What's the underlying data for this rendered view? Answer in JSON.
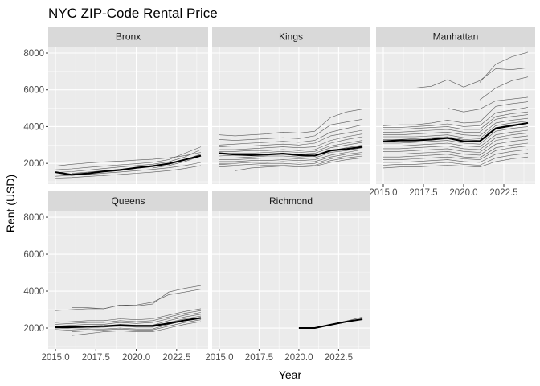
{
  "chart_data": {
    "type": "line",
    "title": "NYC ZIP-Code Rental Price",
    "xlabel": "Year",
    "ylabel": "Rent (USD)",
    "xlim": [
      2014.55,
      2024.45
    ],
    "ylim": [
      870,
      8350
    ],
    "x_ticks": [
      2015.0,
      2017.5,
      2020.0,
      2022.5
    ],
    "x_tick_labels": [
      "2015.0",
      "2017.5",
      "2020.0",
      "2022.5"
    ],
    "y_ticks": [
      2000,
      4000,
      6000,
      8000
    ],
    "y_tick_labels": [
      "2000",
      "4000",
      "6000",
      "8000"
    ],
    "grid": true,
    "colors": {
      "zip_line": "#5a5a5a",
      "median_line": "#000000",
      "panel_bg": "#ebebeb",
      "strip_bg": "#d9d9d9",
      "grid": "#ffffff"
    },
    "x": [
      2015,
      2016,
      2017,
      2018,
      2019,
      2020,
      2021,
      2022,
      2023,
      2024
    ],
    "panels": [
      {
        "name": "Bronx",
        "series": [
          {
            "values": [
              1850,
              1950,
              2020,
              2080,
              2120,
              2180,
              2220,
              2300,
              2420,
              2600
            ]
          },
          {
            "values": [
              1650,
              1700,
              1780,
              1850,
              1920,
              1980,
              2050,
              2200,
              2550,
              2900
            ]
          },
          {
            "values": [
              1500,
              1550,
              1630,
              1720,
              1800,
              1880,
              1950,
              2080,
              2350,
              2750
            ]
          },
          {
            "values": [
              null,
              1450,
              1520,
              1600,
              1680,
              1760,
              1840,
              1960,
              2200,
              2500
            ]
          },
          {
            "values": [
              1300,
              1350,
              1400,
              1470,
              1530,
              1600,
              1670,
              1760,
              1880,
              2050
            ]
          },
          {
            "values": [
              null,
              null,
              null,
              null,
              null,
              null,
              1750,
              1880,
              2100,
              2400
            ]
          },
          {
            "values": [
              1200,
              1230,
              1290,
              1340,
              1400,
              1460,
              1520,
              1600,
              1720,
              1880
            ]
          }
        ],
        "median": [
          1520,
          1380,
          1450,
          1560,
          1640,
          1760,
          1850,
          1980,
          2200,
          2420
        ]
      },
      {
        "name": "Kings",
        "series": [
          {
            "values": [
              3550,
              3500,
              3550,
              3600,
              3700,
              3650,
              3750,
              4500,
              4800,
              4950
            ]
          },
          {
            "values": [
              3300,
              3250,
              3300,
              3350,
              3400,
              3350,
              3500,
              4100,
              4250,
              4400
            ]
          },
          {
            "values": [
              3000,
              3050,
              3100,
              3150,
              3200,
              3150,
              3250,
              3700,
              3900,
              4100
            ]
          },
          {
            "values": [
              2900,
              2950,
              2950,
              3000,
              3050,
              3000,
              3100,
              3500,
              3650,
              3800
            ]
          },
          {
            "values": [
              2750,
              2750,
              2800,
              2850,
              2900,
              2850,
              2900,
              3250,
              3450,
              3600
            ]
          },
          {
            "values": [
              2650,
              2650,
              2700,
              2700,
              2750,
              2700,
              2750,
              3100,
              3300,
              3450
            ]
          },
          {
            "values": [
              2500,
              2550,
              2550,
              2600,
              2650,
              2600,
              2650,
              2950,
              3100,
              3250
            ]
          },
          {
            "values": [
              2400,
              2450,
              2450,
              2500,
              2550,
              2500,
              2550,
              2850,
              3000,
              3150
            ]
          },
          {
            "values": [
              2300,
              2300,
              2350,
              2400,
              2400,
              2350,
              2400,
              2700,
              2850,
              3000
            ]
          },
          {
            "values": [
              2200,
              2200,
              2250,
              2300,
              2300,
              2250,
              2300,
              2600,
              2700,
              2850
            ]
          },
          {
            "values": [
              2100,
              2100,
              2150,
              2150,
              2200,
              2150,
              2200,
              2450,
              2600,
              2750
            ]
          },
          {
            "values": [
              2000,
              2000,
              2050,
              2050,
              2100,
              2050,
              2100,
              2350,
              2500,
              2600
            ]
          },
          {
            "values": [
              1950,
              1900,
              1950,
              2000,
              2000,
              1950,
              2000,
              2250,
              2400,
              2500
            ]
          },
          {
            "values": [
              1800,
              1850,
              1850,
              1900,
              1900,
              1850,
              1900,
              2150,
              2300,
              2400
            ]
          },
          {
            "values": [
              null,
              1600,
              1750,
              1800,
              1850,
              1800,
              1850,
              2050,
              2200,
              2300
            ]
          }
        ],
        "median": [
          2550,
          2480,
          2450,
          2480,
          2530,
          2450,
          2420,
          2700,
          2780,
          2900
        ]
      },
      {
        "name": "Manhattan",
        "series": [
          {
            "values": [
              null,
              null,
              null,
              null,
              null,
              null,
              6400,
              7400,
              7800,
              8050
            ]
          },
          {
            "values": [
              null,
              null,
              6100,
              6200,
              6550,
              6150,
              6500,
              7150,
              7100,
              7200
            ]
          },
          {
            "values": [
              null,
              null,
              null,
              null,
              null,
              null,
              5450,
              6100,
              6500,
              6700
            ]
          },
          {
            "values": [
              null,
              null,
              null,
              null,
              5000,
              4800,
              4950,
              5400,
              5500,
              5600
            ]
          },
          {
            "values": [
              4050,
              4100,
              4100,
              4200,
              4350,
              4200,
              4250,
              5100,
              5250,
              5350
            ]
          },
          {
            "values": [
              3950,
              3950,
              4000,
              4050,
              4150,
              4000,
              4050,
              4750,
              4900,
              5050
            ]
          },
          {
            "values": [
              3850,
              3850,
              3900,
              3950,
              4000,
              3850,
              3850,
              4550,
              4700,
              4800
            ]
          },
          {
            "values": [
              3700,
              3700,
              3750,
              3800,
              3850,
              3700,
              3700,
              4400,
              4550,
              4650
            ]
          },
          {
            "values": [
              3550,
              3550,
              3600,
              3650,
              3700,
              3550,
              3500,
              4200,
              4350,
              4450
            ]
          },
          {
            "values": [
              3450,
              3450,
              3450,
              3500,
              3550,
              3400,
              3350,
              4050,
              4200,
              4300
            ]
          },
          {
            "values": [
              3300,
              3300,
              3350,
              3400,
              3450,
              3300,
              3250,
              3950,
              4100,
              4200
            ]
          },
          {
            "values": [
              3100,
              3100,
              3150,
              3200,
              3250,
              3100,
              3050,
              3750,
              3900,
              4000
            ]
          },
          {
            "values": [
              2950,
              2950,
              3000,
              3050,
              3100,
              2950,
              2900,
              3550,
              3700,
              3800
            ]
          },
          {
            "values": [
              2800,
              2800,
              2850,
              2900,
              2950,
              2800,
              2750,
              3400,
              3550,
              3650
            ]
          },
          {
            "values": [
              2650,
              2650,
              2700,
              2750,
              2800,
              2650,
              2600,
              3250,
              3400,
              3500
            ]
          },
          {
            "values": [
              2500,
              2500,
              2550,
              2600,
              2650,
              2500,
              2450,
              3050,
              3200,
              3300
            ]
          },
          {
            "values": [
              2350,
              2350,
              2400,
              2450,
              2500,
              2350,
              2300,
              2850,
              3000,
              3100
            ]
          },
          {
            "values": [
              2200,
              2200,
              2250,
              2300,
              2350,
              2250,
              2200,
              2700,
              2850,
              2950
            ]
          },
          {
            "values": [
              2050,
              2050,
              2100,
              2150,
              2200,
              2100,
              2050,
              2500,
              2650,
              2750
            ]
          },
          {
            "values": [
              1900,
              1950,
              1950,
              2000,
              2050,
              1950,
              1900,
              2300,
              2450,
              2550
            ]
          },
          {
            "values": [
              1750,
              1800,
              1800,
              1850,
              1900,
              1850,
              1800,
              2100,
              2250,
              2350
            ]
          }
        ],
        "median": [
          3200,
          3250,
          3250,
          3300,
          3380,
          3200,
          3200,
          3900,
          4050,
          4200
        ]
      },
      {
        "name": "Queens",
        "series": [
          {
            "values": [
              2950,
              3000,
              3050,
              3050,
              3250,
              3200,
              3300,
              3950,
              4150,
              4300
            ]
          },
          {
            "values": [
              null,
              3100,
              3100,
              3050,
              3250,
              3250,
              3400,
              3800,
              3950,
              4100
            ]
          },
          {
            "values": [
              2300,
              2350,
              2400,
              2400,
              2500,
              2450,
              2500,
              2700,
              2900,
              3050
            ]
          },
          {
            "values": [
              2200,
              2250,
              2300,
              2300,
              2400,
              2350,
              2400,
              2600,
              2800,
              2950
            ]
          },
          {
            "values": [
              2100,
              2150,
              2200,
              2200,
              2300,
              2250,
              2300,
              2500,
              2700,
              2850
            ]
          },
          {
            "values": [
              2000,
              2050,
              2100,
              2100,
              2200,
              2150,
              2150,
              2400,
              2600,
              2750
            ]
          },
          {
            "values": [
              1950,
              2000,
              2000,
              2050,
              2100,
              2050,
              2050,
              2300,
              2500,
              2650
            ]
          },
          {
            "values": [
              1850,
              1900,
              1950,
              1950,
              2000,
              1950,
              1950,
              2200,
              2400,
              2550
            ]
          },
          {
            "values": [
              null,
              1800,
              1850,
              1900,
              1950,
              1900,
              1900,
              2100,
              2300,
              2450
            ]
          },
          {
            "values": [
              null,
              1600,
              1700,
              1800,
              1850,
              1800,
              1800,
              2000,
              2200,
              2350
            ]
          }
        ],
        "median": [
          2050,
          2050,
          2080,
          2100,
          2150,
          2120,
          2120,
          2250,
          2420,
          2550
        ]
      },
      {
        "name": "Richmond",
        "series": [
          {
            "values": [
              null,
              null,
              null,
              null,
              null,
              2000,
              2000,
              2200,
              2380,
              2600
            ]
          },
          {
            "values": [
              null,
              null,
              null,
              null,
              null,
              2000,
              2000,
              2150,
              2330,
              2500
            ]
          }
        ],
        "median": [
          null,
          null,
          null,
          null,
          null,
          2000,
          2000,
          2180,
          2350,
          2480
        ]
      }
    ]
  }
}
